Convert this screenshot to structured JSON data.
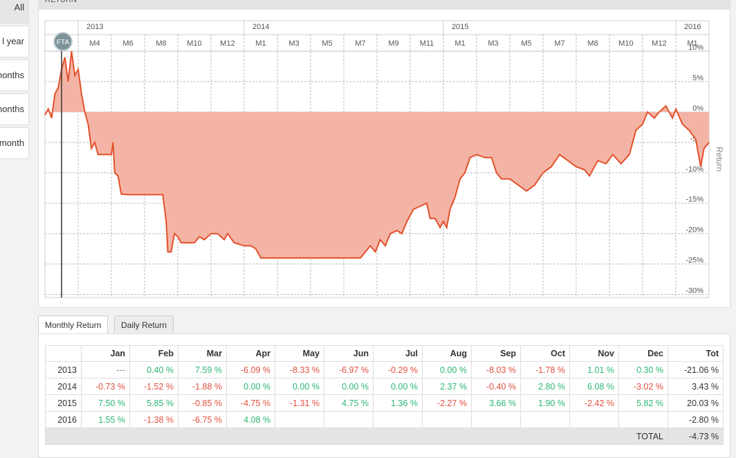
{
  "sidebar": {
    "buttons": [
      "All",
      "l year",
      "months",
      "months",
      "month"
    ]
  },
  "panel_title": "RETURN",
  "chart_data": {
    "type": "area",
    "y_axis_label": "Return",
    "xlim": [
      0,
      40
    ],
    "ylim": [
      -30.5,
      15
    ],
    "xticks": [
      {
        "value": 2,
        "label": "M4"
      },
      {
        "value": 4,
        "label": "M6"
      },
      {
        "value": 6,
        "label": "M8"
      },
      {
        "value": 8,
        "label": "M10"
      },
      {
        "value": 10,
        "label": "M12"
      },
      {
        "value": 12,
        "label": "M1"
      },
      {
        "value": 14,
        "label": "M3"
      },
      {
        "value": 16,
        "label": "M5"
      },
      {
        "value": 18,
        "label": "M7"
      },
      {
        "value": 20,
        "label": "M9"
      },
      {
        "value": 22,
        "label": "M11"
      },
      {
        "value": 24,
        "label": "M1"
      },
      {
        "value": 26,
        "label": "M3"
      },
      {
        "value": 28,
        "label": "M5"
      },
      {
        "value": 30,
        "label": "M7"
      },
      {
        "value": 32,
        "label": "M8"
      },
      {
        "value": 34,
        "label": "M10"
      },
      {
        "value": 36,
        "label": "M12"
      },
      {
        "value": 38,
        "label": "M1"
      }
    ],
    "year_ticks": [
      {
        "value": 2,
        "label": "2013"
      },
      {
        "value": 12,
        "label": "2014"
      },
      {
        "value": 24,
        "label": "2015"
      },
      {
        "value": 38,
        "label": "2016"
      }
    ],
    "yticks": [
      {
        "value": -30,
        "label": "-30%"
      },
      {
        "value": -25,
        "label": "-25%"
      },
      {
        "value": -20,
        "label": "-20%"
      },
      {
        "value": -15,
        "label": "-15%"
      },
      {
        "value": -10,
        "label": "-10%"
      },
      {
        "value": -5,
        "label": "-5%"
      },
      {
        "value": 0,
        "label": "0%"
      },
      {
        "value": 5,
        "label": "5%"
      },
      {
        "value": 10,
        "label": "10%"
      }
    ],
    "grid": true,
    "color": "#e2512b",
    "fill": "#f4b4a5",
    "marker": {
      "x": 1,
      "label": "FTA"
    },
    "x": [
      0,
      0.2,
      0.4,
      0.6,
      0.8,
      1.0,
      1.2,
      1.4,
      1.6,
      1.8,
      2.0,
      2.2,
      2.4,
      2.6,
      2.8,
      3.0,
      3.2,
      3.6,
      4.0,
      4.1,
      4.2,
      4.4,
      4.6,
      5,
      6,
      7,
      7.1,
      7.3,
      7.4,
      7.6,
      7.8,
      8.0,
      8.2,
      8.5,
      9,
      9.3,
      9.6,
      10,
      10.4,
      10.8,
      11,
      11.4,
      12,
      12.4,
      12.7,
      13,
      14,
      19,
      19.3,
      19.6,
      19.9,
      20.2,
      20.5,
      20.8,
      21.2,
      21.5,
      21.8,
      22.2,
      22.6,
      23,
      23.2,
      23.5,
      23.8,
      24,
      24.2,
      24.4,
      24.7,
      25,
      25.3,
      25.6,
      26,
      26.5,
      26.9,
      27.2,
      27.5,
      28,
      28.5,
      29,
      29.5,
      30,
      30.5,
      31,
      31.5,
      32,
      32.5,
      32.8,
      33.3,
      33.8,
      34.2,
      34.7,
      35.2,
      35.6,
      36,
      36.3,
      36.7,
      37,
      37.4,
      37.8,
      38,
      38.4,
      38.8,
      39.2,
      39.5,
      39.7,
      40
    ],
    "values": [
      -0.5,
      0.5,
      -1,
      3,
      4,
      7,
      9,
      5,
      10,
      6,
      7,
      3,
      0,
      -2,
      -6,
      -5,
      -7,
      -7,
      -7,
      -5,
      -10,
      -10.5,
      -13.5,
      -13.6,
      -13.6,
      -13.6,
      -13.6,
      -18,
      -23,
      -23,
      -20,
      -20.5,
      -21.5,
      -21.5,
      -21.5,
      -20.5,
      -21,
      -20,
      -20,
      -21,
      -20,
      -21.5,
      -22,
      -22,
      -22.5,
      -24,
      -24,
      -24,
      -23,
      -22,
      -23,
      -21,
      -22,
      -20,
      -19.5,
      -20,
      -18,
      -16,
      -15.5,
      -15,
      -17.5,
      -17.5,
      -19,
      -18,
      -19,
      -16,
      -14,
      -11,
      -10,
      -7.5,
      -7,
      -7.5,
      -7.5,
      -10,
      -11,
      -11,
      -12,
      -13,
      -12,
      -10,
      -9,
      -7,
      -8,
      -9,
      -9.5,
      -10.5,
      -8,
      -8.5,
      -7,
      -8.5,
      -7,
      -3,
      -2,
      0,
      -1,
      0,
      1,
      -1,
      0.5,
      -2,
      -3,
      -4.5,
      -9,
      -6,
      -5
    ]
  },
  "tabs": [
    "Monthly Return",
    "Daily Return"
  ],
  "table": {
    "columns": [
      "Jan",
      "Feb",
      "Mar",
      "Apr",
      "May",
      "Jun",
      "Jul",
      "Aug",
      "Sep",
      "Oct",
      "Nov",
      "Dec",
      "Tot"
    ],
    "rows": [
      {
        "year": "2013",
        "cells": [
          "---",
          "0.40 %",
          "7.59 %",
          "-6.09 %",
          "-8.33 %",
          "-6.97 %",
          "-0.29 %",
          "0.00 %",
          "-8.03 %",
          "-1.78 %",
          "1.01 %",
          "0.30 %",
          "-21.06 %"
        ]
      },
      {
        "year": "2014",
        "cells": [
          "-0.73 %",
          "-1.52 %",
          "-1.88 %",
          "0.00 %",
          "0.00 %",
          "0.00 %",
          "0.00 %",
          "2.37 %",
          "-0.40 %",
          "2.80 %",
          "6.08 %",
          "-3.02 %",
          "3.43 %"
        ]
      },
      {
        "year": "2015",
        "cells": [
          "7.50 %",
          "5.85 %",
          "-0.85 %",
          "-4.75 %",
          "-1.31 %",
          "4.75 %",
          "1.36 %",
          "-2.27 %",
          "3.66 %",
          "1.90 %",
          "-2.42 %",
          "5.82 %",
          "20.03 %"
        ]
      },
      {
        "year": "2016",
        "cells": [
          "1.55 %",
          "-1.38 %",
          "-6.75 %",
          "4.08 %",
          null,
          null,
          null,
          null,
          null,
          null,
          null,
          null,
          "-2.80 %"
        ]
      }
    ],
    "total": {
      "label": "TOTAL",
      "value": "-4.73 %"
    }
  }
}
